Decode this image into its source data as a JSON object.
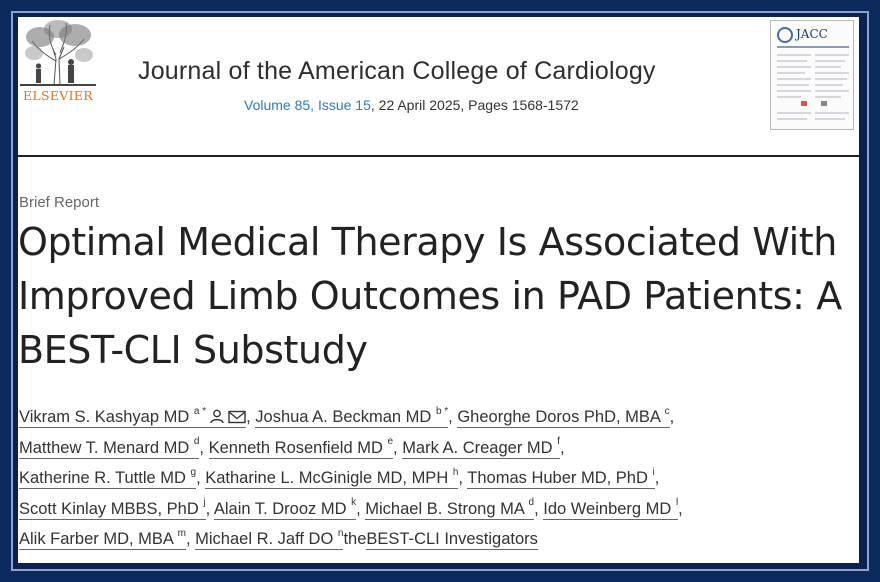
{
  "publisher": {
    "name": "ELSEVIER"
  },
  "journal": {
    "title": "Journal of the American College of Cardiology",
    "volume_issue": "Volume 85, Issue 15",
    "date_pages": ", 22 April 2025, Pages 1568-1572",
    "cover_label": "JACC"
  },
  "article": {
    "type": "Brief Report",
    "title_lines": [
      "Optimal Medical Therapy Is Associated With",
      "Improved Limb Outcomes in PAD Patients: A",
      "BEST-CLI Substudy"
    ]
  },
  "authors": [
    {
      "name": "Vikram S. Kashyap MD",
      "aff": "a *",
      "icons": [
        "person-icon",
        "envelope-icon"
      ]
    },
    {
      "name": "Joshua A. Beckman MD",
      "aff": "b *"
    },
    {
      "name": "Gheorghe Doros PhD, MBA",
      "aff": "c"
    },
    {
      "name": "Matthew T. Menard MD",
      "aff": "d"
    },
    {
      "name": "Kenneth Rosenfield MD",
      "aff": "e"
    },
    {
      "name": "Mark A. Creager MD",
      "aff": "f"
    },
    {
      "name": "Katherine R. Tuttle MD",
      "aff": "g"
    },
    {
      "name": "Katharine L. McGinigle MD, MPH",
      "aff": "h"
    },
    {
      "name": "Thomas Huber MD, PhD",
      "aff": "i"
    },
    {
      "name": "Scott Kinlay MBBS, PhD",
      "aff": "j"
    },
    {
      "name": "Alain T. Drooz MD",
      "aff": "k"
    },
    {
      "name": "Michael B. Strong MA",
      "aff": "d"
    },
    {
      "name": "Ido Weinberg MD",
      "aff": "l"
    },
    {
      "name": "Alik Farber MD, MBA",
      "aff": "m"
    },
    {
      "name": "Michael R. Jaff DO",
      "aff": "n"
    },
    {
      "name": "BEST-CLI Investigators",
      "prefix": "the"
    }
  ],
  "colors": {
    "frame": "#0c2a5e",
    "link": "#2a7fb8",
    "elsevier_orange": "#e9711c"
  }
}
